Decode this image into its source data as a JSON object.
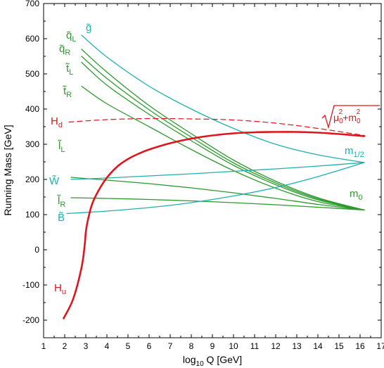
{
  "chart_data": {
    "type": "line",
    "xlabel": "log10 Q [GeV]",
    "ylabel": "Running Mass [GeV]",
    "xlim": [
      1,
      17
    ],
    "ylim": [
      -250,
      700
    ],
    "xticks": [
      "1",
      "2",
      "3",
      "4",
      "5",
      "6",
      "7",
      "8",
      "9",
      "10",
      "11",
      "12",
      "13",
      "14",
      "15",
      "16",
      "17"
    ],
    "yticks": [
      "-200",
      "-100",
      "0",
      "100",
      "200",
      "300",
      "400",
      "500",
      "600",
      "700"
    ],
    "colors": {
      "cyan": "#1fb0b0",
      "green": "#2c9a2c",
      "red": "#e0141c"
    },
    "series": [
      {
        "name": "gluino",
        "color": "cyan",
        "dash": false,
        "width": 1.3,
        "x": [
          2.8,
          4,
          6,
          8,
          10,
          12,
          14,
          16.2
        ],
        "y": [
          610,
          548,
          465,
          400,
          345,
          300,
          270,
          248
        ]
      },
      {
        "name": "qL",
        "color": "green",
        "dash": false,
        "width": 1.3,
        "x": [
          2.8,
          4,
          6,
          8,
          10,
          12,
          14,
          16.2
        ],
        "y": [
          570,
          505,
          410,
          330,
          255,
          195,
          148,
          113
        ]
      },
      {
        "name": "qR",
        "color": "green",
        "dash": false,
        "width": 1.3,
        "x": [
          2.8,
          4,
          6,
          8,
          10,
          12,
          14,
          16.2
        ],
        "y": [
          550,
          487,
          398,
          320,
          247,
          190,
          145,
          113
        ]
      },
      {
        "name": "tL",
        "color": "green",
        "dash": false,
        "width": 1.3,
        "x": [
          2.8,
          4,
          6,
          8,
          10,
          12,
          14,
          16.2
        ],
        "y": [
          533,
          468,
          385,
          310,
          240,
          185,
          142,
          113
        ]
      },
      {
        "name": "tR",
        "color": "green",
        "dash": false,
        "width": 1.3,
        "x": [
          2.8,
          4,
          6,
          8,
          10,
          12,
          14,
          16.2
        ],
        "y": [
          465,
          415,
          350,
          285,
          225,
          175,
          137,
          113
        ]
      },
      {
        "name": "lL",
        "color": "green",
        "dash": false,
        "width": 1.3,
        "x": [
          2.3,
          4,
          6,
          8,
          10,
          12,
          14,
          16.2
        ],
        "y": [
          206,
          198,
          188,
          176,
          162,
          146,
          129,
          113
        ]
      },
      {
        "name": "lR",
        "color": "green",
        "dash": false,
        "width": 1.3,
        "x": [
          2.3,
          4,
          6,
          8,
          10,
          12,
          14,
          16.2
        ],
        "y": [
          148,
          146,
          143,
          139,
          134,
          128,
          121,
          113
        ]
      },
      {
        "name": "wino",
        "color": "cyan",
        "dash": false,
        "width": 1.3,
        "x": [
          2.3,
          4,
          6,
          8,
          10,
          12,
          14,
          16.2
        ],
        "y": [
          200,
          204,
          210,
          216,
          223,
          230,
          238,
          248
        ]
      },
      {
        "name": "bino",
        "color": "cyan",
        "dash": false,
        "width": 1.3,
        "x": [
          2.1,
          4,
          6,
          8,
          10,
          12,
          14,
          16.2
        ],
        "y": [
          103,
          110,
          120,
          134,
          153,
          177,
          208,
          248
        ]
      },
      {
        "name": "Hd",
        "color": "red",
        "dash": true,
        "width": 1.2,
        "x": [
          2.2,
          4,
          6,
          8,
          10,
          12,
          14,
          16.2
        ],
        "y": [
          363,
          370,
          373,
          372,
          369,
          360,
          345,
          325
        ]
      },
      {
        "name": "Hu",
        "color": "red",
        "dash": false,
        "width": 2.6,
        "x": [
          1.95,
          2.4,
          2.8,
          2.95,
          3.0,
          3.1,
          3.3,
          3.6,
          4.0,
          4.5,
          5.0,
          5.5,
          6,
          7,
          8,
          9,
          10,
          11,
          12,
          13,
          14,
          15,
          16.2
        ],
        "y": [
          -195,
          -140,
          -50,
          15,
          50,
          85,
          130,
          168,
          205,
          237,
          258,
          273,
          285,
          303,
          316,
          325,
          331,
          334,
          335,
          335,
          333,
          329,
          323
        ]
      }
    ],
    "annotations": {
      "gluino": "g̃",
      "qL": {
        "base": "q̃",
        "sub": "L"
      },
      "qR": {
        "base": "q̃",
        "sub": "R"
      },
      "tL": {
        "base": "t̃",
        "sub": "L"
      },
      "tR": {
        "base": "t̃",
        "sub": "R"
      },
      "Hd": {
        "base": "H",
        "sub": "d"
      },
      "Hu": {
        "base": "H",
        "sub": "u"
      },
      "lL": {
        "base": "l̃",
        "sub": "L"
      },
      "lR": {
        "base": "l̃",
        "sub": "R"
      },
      "wino": "W̃",
      "bino": "B̃",
      "m12": {
        "base": "m",
        "sub": "1/2"
      },
      "m0": {
        "base": "m",
        "sub": "0"
      },
      "sqrt": "√(μ0²+m0²)"
    }
  }
}
